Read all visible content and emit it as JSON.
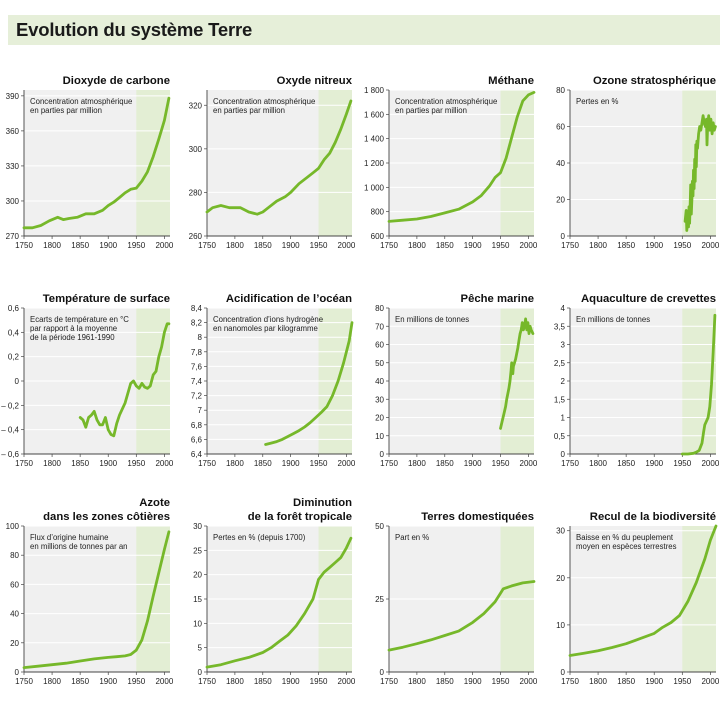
{
  "page_title": "Evolution du système Terre",
  "colors": {
    "header_bg": "#e6efd9",
    "line": "#76b82a",
    "shade": "#e3eed4",
    "plot_bg": "#f0f0f0"
  },
  "chart_data": [
    {
      "type": "line",
      "title": [
        "Dioxyde de carbone"
      ],
      "note": [
        "Concentration atmosphérique",
        "en parties par million"
      ],
      "xlim": [
        1750,
        2010
      ],
      "ylim": [
        270,
        395
      ],
      "yticks": [
        270,
        300,
        330,
        360,
        390
      ],
      "ytick_labels": [
        "270",
        "300",
        "330",
        "360",
        "390"
      ],
      "xticks": [
        1750,
        1800,
        1850,
        1900,
        1950,
        2000
      ],
      "shade_from": 1950,
      "series": [
        {
          "x": [
            1750,
            1765,
            1780,
            1795,
            1810,
            1820,
            1830,
            1845,
            1860,
            1875,
            1890,
            1900,
            1910,
            1920,
            1930,
            1940,
            1950,
            1960,
            1970,
            1980,
            1990,
            2000,
            2008
          ],
          "y": [
            277,
            277,
            279,
            283,
            286,
            284,
            285,
            286,
            289,
            289,
            292,
            296,
            299,
            303,
            307,
            310,
            311,
            317,
            325,
            338,
            353,
            369,
            388
          ]
        }
      ]
    },
    {
      "type": "line",
      "title": [
        "Oxyde nitreux"
      ],
      "note": [
        "Concentration atmosphérique",
        "en parties par million"
      ],
      "xlim": [
        1750,
        2010
      ],
      "ylim": [
        260,
        327
      ],
      "yticks": [
        260,
        280,
        300,
        320
      ],
      "ytick_labels": [
        "260",
        "280",
        "300",
        "320"
      ],
      "xticks": [
        1750,
        1800,
        1850,
        1900,
        1950,
        2000
      ],
      "shade_from": 1950,
      "series": [
        {
          "x": [
            1750,
            1760,
            1775,
            1790,
            1810,
            1825,
            1840,
            1850,
            1860,
            1875,
            1890,
            1900,
            1915,
            1930,
            1940,
            1950,
            1960,
            1970,
            1980,
            1990,
            2000,
            2008
          ],
          "y": [
            271,
            273,
            274,
            273,
            273,
            271,
            270,
            271,
            273,
            276,
            278,
            280,
            284,
            287,
            289,
            291,
            295,
            298,
            303,
            309,
            316,
            322
          ]
        }
      ]
    },
    {
      "type": "line",
      "title": [
        "Méthane"
      ],
      "note": [
        "Concentration atmosphérique",
        "en parties par million"
      ],
      "xlim": [
        1750,
        2010
      ],
      "ylim": [
        600,
        1800
      ],
      "yticks": [
        600,
        800,
        1000,
        1200,
        1400,
        1600,
        1800
      ],
      "ytick_labels": [
        "600",
        "800",
        "1 000",
        "1 200",
        "1 400",
        "1 600",
        "1 800"
      ],
      "xticks": [
        1750,
        1800,
        1850,
        1900,
        1950,
        2000
      ],
      "shade_from": 1950,
      "series": [
        {
          "x": [
            1750,
            1775,
            1800,
            1825,
            1850,
            1875,
            1900,
            1915,
            1930,
            1940,
            1950,
            1960,
            1970,
            1980,
            1990,
            2000,
            2010
          ],
          "y": [
            720,
            730,
            740,
            760,
            790,
            820,
            880,
            930,
            1010,
            1080,
            1120,
            1240,
            1410,
            1580,
            1710,
            1760,
            1780
          ]
        }
      ]
    },
    {
      "type": "line",
      "title": [
        "Ozone stratosphérique"
      ],
      "note": [
        "Pertes en %"
      ],
      "xlim": [
        1750,
        2010
      ],
      "ylim": [
        0,
        80
      ],
      "yticks": [
        0,
        20,
        40,
        60,
        80
      ],
      "ytick_labels": [
        "0",
        "20",
        "40",
        "60",
        "80"
      ],
      "xticks": [
        1750,
        1800,
        1850,
        1900,
        1950,
        2000
      ],
      "shade_from": 1950,
      "series": [
        {
          "x": [
            1955,
            1957,
            1958,
            1960,
            1961,
            1962,
            1963,
            1964,
            1965,
            1966,
            1967,
            1968,
            1969,
            1970,
            1971,
            1972,
            1973,
            1974,
            1975,
            1976,
            1977,
            1979,
            1981,
            1983,
            1985,
            1987,
            1989,
            1991,
            1993,
            1994,
            1995,
            1997,
            1999,
            2001,
            2003,
            2005,
            2007,
            2009
          ],
          "y": [
            8,
            14,
            3,
            12,
            5,
            16,
            7,
            18,
            28,
            12,
            20,
            30,
            22,
            36,
            26,
            42,
            30,
            50,
            38,
            52,
            48,
            56,
            60,
            58,
            62,
            66,
            62,
            60,
            64,
            50,
            60,
            66,
            58,
            64,
            56,
            62,
            58,
            60
          ]
        }
      ]
    },
    {
      "type": "line",
      "title": [
        "Température de surface"
      ],
      "note": [
        "Ecarts de température en °C",
        "par rapport à la moyenne",
        "de la période 1961-1990"
      ],
      "xlim": [
        1750,
        2010
      ],
      "ylim": [
        -0.6,
        0.6
      ],
      "yticks": [
        -0.6,
        -0.4,
        -0.2,
        0,
        0.2,
        0.4,
        0.6
      ],
      "ytick_labels": [
        "– 0,6",
        "– 0,4",
        "– 0,2",
        "0",
        "0,2",
        "0,4",
        "0,6"
      ],
      "xticks": [
        1750,
        1800,
        1850,
        1900,
        1950,
        2000
      ],
      "shade_from": 1950,
      "series": [
        {
          "x": [
            1850,
            1855,
            1860,
            1865,
            1870,
            1875,
            1880,
            1885,
            1890,
            1895,
            1900,
            1905,
            1910,
            1915,
            1920,
            1930,
            1940,
            1945,
            1950,
            1955,
            1960,
            1965,
            1970,
            1975,
            1980,
            1985,
            1990,
            1995,
            2000,
            2005,
            2008
          ],
          "y": [
            -0.3,
            -0.32,
            -0.38,
            -0.3,
            -0.28,
            -0.25,
            -0.32,
            -0.36,
            -0.36,
            -0.3,
            -0.4,
            -0.44,
            -0.45,
            -0.35,
            -0.28,
            -0.18,
            -0.02,
            0.0,
            -0.04,
            -0.06,
            -0.02,
            -0.05,
            -0.06,
            -0.04,
            0.05,
            0.08,
            0.2,
            0.28,
            0.4,
            0.47,
            0.47
          ]
        }
      ]
    },
    {
      "type": "line",
      "title": [
        "Acidification de l’océan"
      ],
      "note": [
        "Concentration d’ions hydrogène",
        "en nanomoles par kilogramme"
      ],
      "xlim": [
        1750,
        2010
      ],
      "ylim": [
        6.4,
        8.4
      ],
      "yticks": [
        6.4,
        6.6,
        6.8,
        7,
        7.2,
        7.4,
        7.6,
        7.8,
        8,
        8.2,
        8.4
      ],
      "ytick_labels": [
        "6,4",
        "6,6",
        "6,8",
        "7",
        "7,2",
        "7,4",
        "7,6",
        "7,8",
        "8",
        "8,2",
        "8,4"
      ],
      "xticks": [
        1750,
        1800,
        1850,
        1900,
        1950,
        2000
      ],
      "shade_from": 1950,
      "series": [
        {
          "x": [
            1855,
            1865,
            1875,
            1885,
            1895,
            1905,
            1915,
            1925,
            1935,
            1945,
            1955,
            1965,
            1975,
            1985,
            1995,
            2005,
            2010
          ],
          "y": [
            6.53,
            6.55,
            6.57,
            6.6,
            6.64,
            6.68,
            6.72,
            6.77,
            6.83,
            6.9,
            6.97,
            7.05,
            7.2,
            7.4,
            7.65,
            7.95,
            8.2
          ]
        }
      ]
    },
    {
      "type": "line",
      "title": [
        "Pêche marine"
      ],
      "note": [
        "En millions de tonnes"
      ],
      "xlim": [
        1750,
        2010
      ],
      "ylim": [
        0,
        80
      ],
      "yticks": [
        0,
        10,
        20,
        30,
        40,
        50,
        60,
        70,
        80
      ],
      "ytick_labels": [
        "0",
        "10",
        "20",
        "30",
        "40",
        "50",
        "60",
        "70",
        "80"
      ],
      "xticks": [
        1750,
        1800,
        1850,
        1900,
        1950,
        2000
      ],
      "shade_from": 1950,
      "series": [
        {
          "x": [
            1950,
            1953,
            1956,
            1959,
            1961,
            1963,
            1965,
            1967,
            1969,
            1970,
            1971,
            1972,
            1973,
            1975,
            1977,
            1979,
            1981,
            1983,
            1985,
            1987,
            1989,
            1991,
            1993,
            1995,
            1997,
            1999,
            2001,
            2003,
            2005,
            2008
          ],
          "y": [
            14,
            18,
            22,
            26,
            30,
            33,
            36,
            40,
            46,
            50,
            46,
            44,
            48,
            50,
            52,
            55,
            58,
            62,
            66,
            68,
            72,
            68,
            70,
            74,
            68,
            72,
            66,
            70,
            68,
            66
          ]
        }
      ]
    },
    {
      "type": "line",
      "title": [
        "Aquaculture de crevettes"
      ],
      "note": [
        "En millions de tonnes"
      ],
      "xlim": [
        1750,
        2010
      ],
      "ylim": [
        0,
        4
      ],
      "yticks": [
        0,
        0.5,
        1,
        1.5,
        2,
        2.5,
        3,
        3.5,
        4
      ],
      "ytick_labels": [
        "0",
        "0,5",
        "1",
        "1,5",
        "2",
        "2,5",
        "3",
        "3,5",
        "4"
      ],
      "xticks": [
        1750,
        1800,
        1850,
        1900,
        1950,
        2000
      ],
      "shade_from": 1950,
      "series": [
        {
          "x": [
            1950,
            1960,
            1970,
            1975,
            1980,
            1985,
            1988,
            1990,
            1993,
            1996,
            1999,
            2002,
            2005,
            2008
          ],
          "y": [
            0,
            0,
            0.02,
            0.05,
            0.1,
            0.3,
            0.6,
            0.8,
            0.9,
            1.0,
            1.3,
            1.9,
            2.8,
            3.8
          ]
        }
      ]
    },
    {
      "type": "line",
      "title": [
        "Azote",
        "dans les zones côtières"
      ],
      "note": [
        "Flux d’origine humaine",
        "en millions de tonnes par an"
      ],
      "xlim": [
        1750,
        2010
      ],
      "ylim": [
        0,
        100
      ],
      "yticks": [
        0,
        20,
        40,
        60,
        80,
        100
      ],
      "ytick_labels": [
        "0",
        "20",
        "40",
        "60",
        "80",
        "100"
      ],
      "xticks": [
        1750,
        1800,
        1850,
        1900,
        1950,
        2000
      ],
      "shade_from": 1950,
      "series": [
        {
          "x": [
            1750,
            1775,
            1800,
            1825,
            1850,
            1875,
            1900,
            1915,
            1930,
            1940,
            1950,
            1960,
            1970,
            1980,
            1990,
            2000,
            2008
          ],
          "y": [
            3,
            4,
            5,
            6,
            7.5,
            9,
            10,
            10.5,
            11,
            12,
            15,
            22,
            35,
            52,
            68,
            84,
            96
          ]
        }
      ]
    },
    {
      "type": "line",
      "title": [
        "Diminution",
        "de la forêt tropicale"
      ],
      "note": [
        "Pertes en % (depuis 1700)"
      ],
      "xlim": [
        1750,
        2010
      ],
      "ylim": [
        0,
        30
      ],
      "yticks": [
        0,
        5,
        10,
        15,
        20,
        25,
        30
      ],
      "ytick_labels": [
        "0",
        "5",
        "10",
        "15",
        "20",
        "25",
        "30"
      ],
      "xticks": [
        1750,
        1800,
        1850,
        1900,
        1950,
        2000
      ],
      "shade_from": 1950,
      "series": [
        {
          "x": [
            1750,
            1775,
            1800,
            1825,
            1850,
            1865,
            1880,
            1895,
            1910,
            1925,
            1940,
            1950,
            1960,
            1970,
            1980,
            1990,
            2000,
            2008
          ],
          "y": [
            1,
            1.5,
            2.3,
            3,
            4,
            5,
            6.3,
            7.6,
            9.5,
            12,
            15,
            19,
            20.5,
            21.5,
            22.5,
            23.5,
            25.5,
            27.5
          ]
        }
      ]
    },
    {
      "type": "line",
      "title": [
        "Terres domestiquées"
      ],
      "note": [
        "Part en %"
      ],
      "xlim": [
        1750,
        2010
      ],
      "ylim": [
        0,
        50
      ],
      "yticks": [
        0,
        25,
        50
      ],
      "ytick_labels": [
        "0",
        "25",
        "50"
      ],
      "xticks": [
        1750,
        1800,
        1850,
        1900,
        1950,
        2000
      ],
      "shade_from": 1950,
      "series": [
        {
          "x": [
            1750,
            1775,
            1800,
            1825,
            1850,
            1875,
            1900,
            1920,
            1940,
            1950,
            1955,
            1970,
            1990,
            2010
          ],
          "y": [
            7.5,
            8.5,
            9.7,
            11,
            12.5,
            14,
            17,
            20,
            24,
            27,
            28.5,
            29.5,
            30.5,
            31
          ]
        }
      ]
    },
    {
      "type": "line",
      "title": [
        "Recul de la biodiversité"
      ],
      "note": [
        "Baisse en % du peuplement",
        "moyen en espèces terrestres"
      ],
      "xlim": [
        1750,
        2010
      ],
      "ylim": [
        0,
        31
      ],
      "yticks": [
        0,
        10,
        20,
        30
      ],
      "ytick_labels": [
        "0",
        "10",
        "20",
        "30"
      ],
      "xticks": [
        1750,
        1800,
        1850,
        1900,
        1950,
        2000
      ],
      "shade_from": 1950,
      "series": [
        {
          "x": [
            1750,
            1775,
            1800,
            1825,
            1850,
            1875,
            1900,
            1915,
            1930,
            1945,
            1960,
            1975,
            1990,
            2000,
            2010
          ],
          "y": [
            3.5,
            4,
            4.5,
            5.2,
            6,
            7.1,
            8.2,
            9.5,
            10.5,
            12,
            15,
            19,
            24,
            28,
            31
          ]
        }
      ]
    }
  ]
}
